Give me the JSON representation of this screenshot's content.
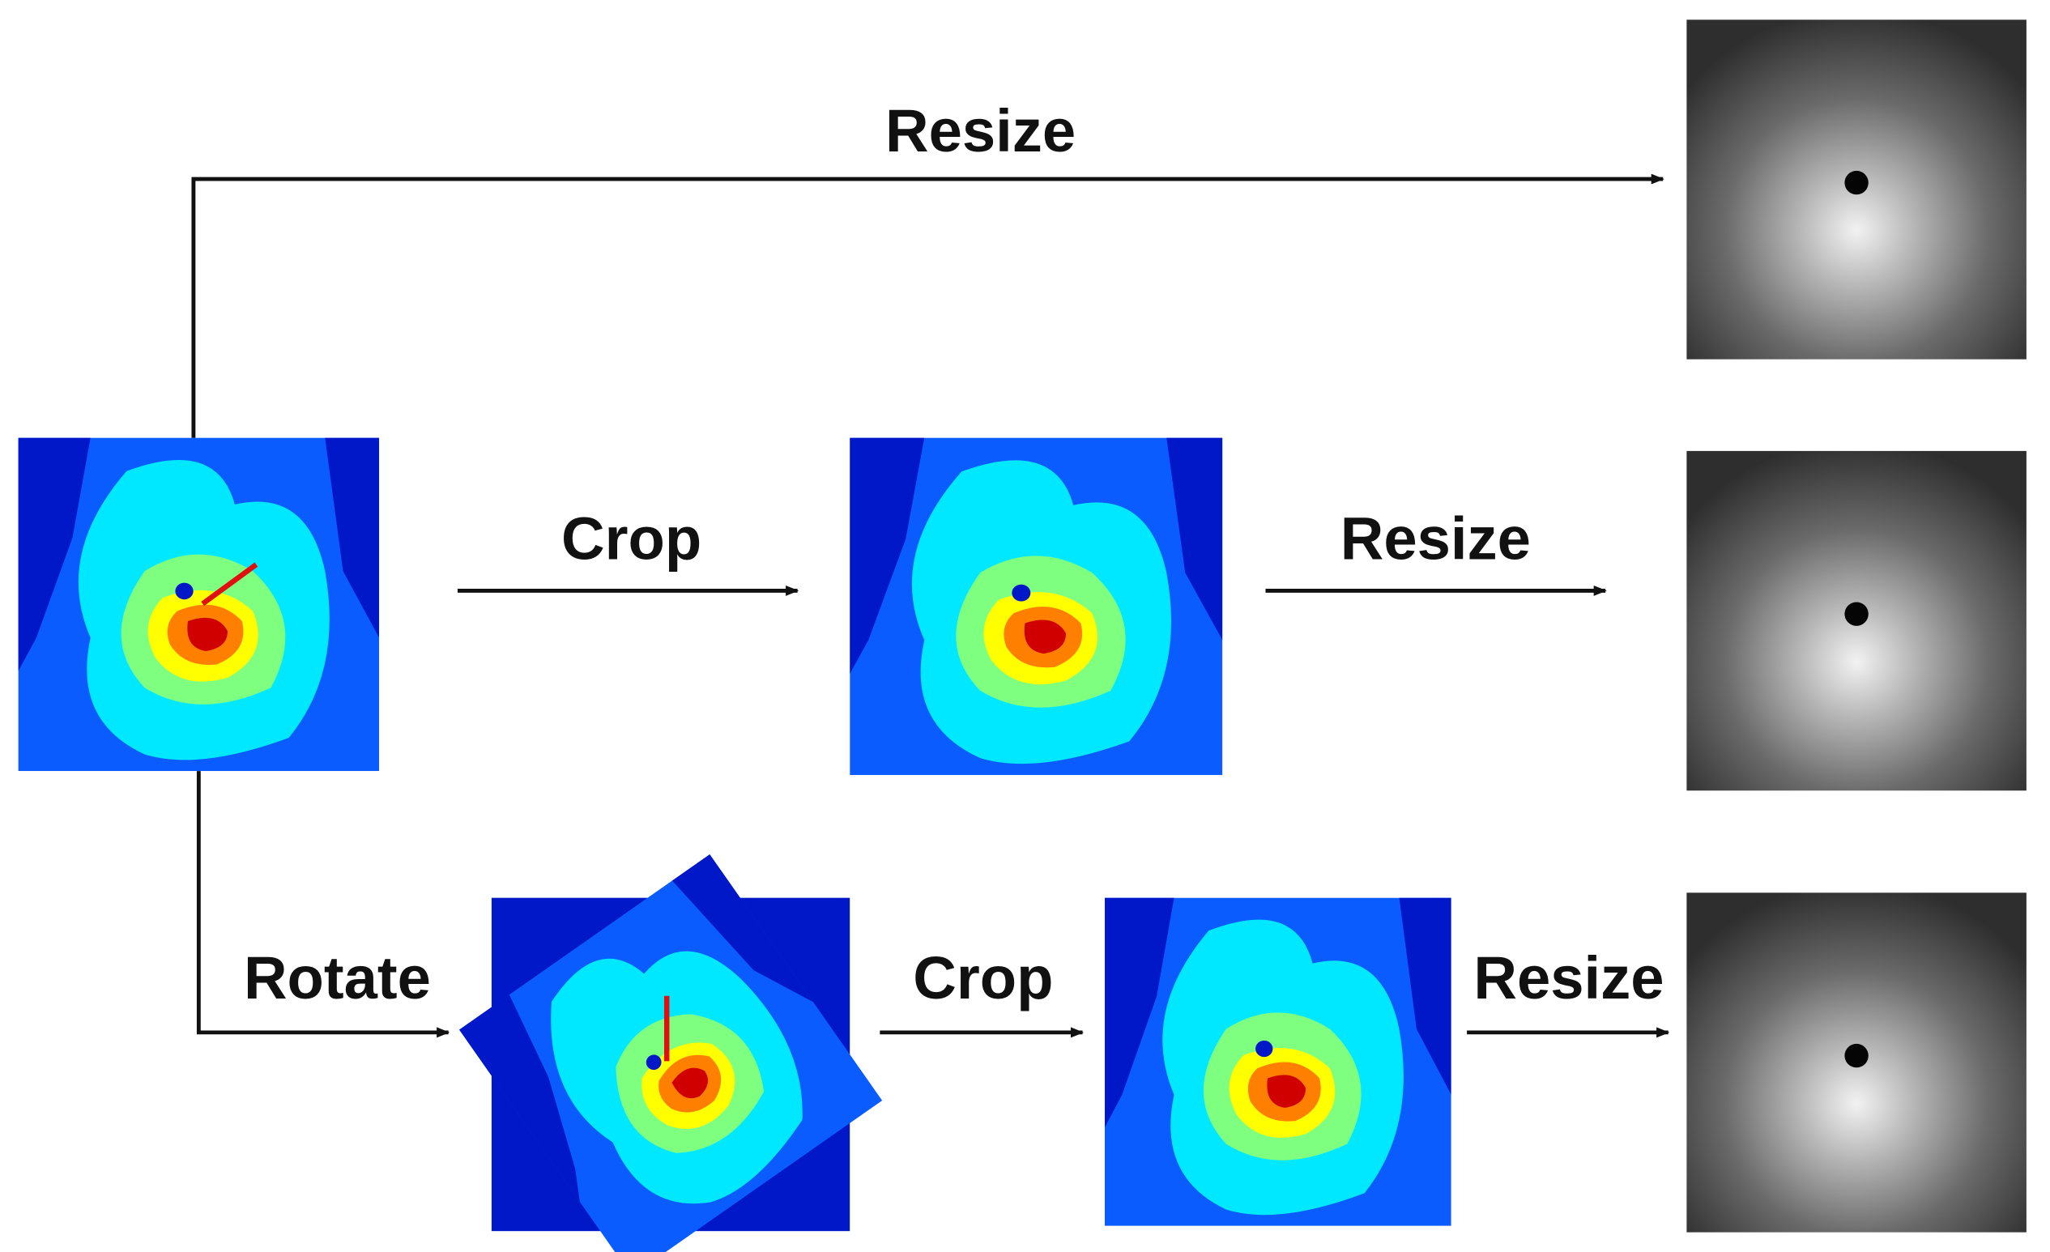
{
  "edges": [
    {
      "label": "Resize"
    },
    {
      "label": "Crop"
    },
    {
      "label": "Resize"
    },
    {
      "label": "Rotate"
    },
    {
      "label": "Crop"
    },
    {
      "label": "Resize"
    }
  ]
}
